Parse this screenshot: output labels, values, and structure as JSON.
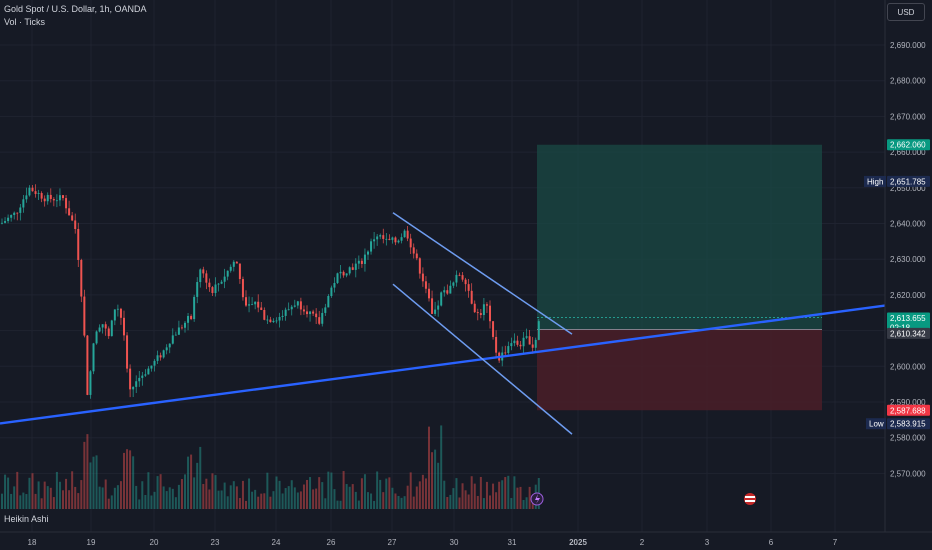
{
  "header": {
    "title": "Gold Spot / U.S. Dollar, 1h, OANDA",
    "indicator": "Vol · Ticks"
  },
  "currency_button": "USD",
  "footer_label": "Heikin Ashi",
  "price_axis": {
    "ticks": [
      "2,690.000",
      "2,680.000",
      "2,670.000",
      "2,660.000",
      "2,650.000",
      "2,640.000",
      "2,630.000",
      "2,620.000",
      "2,610.000",
      "2,600.000",
      "2,590.000",
      "2,580.000",
      "2,570.000"
    ],
    "tick_values": [
      2690,
      2680,
      2670,
      2660,
      2650,
      2640,
      2630,
      2620,
      2610,
      2600,
      2590,
      2580,
      2570
    ]
  },
  "time_axis": {
    "labels": [
      "18",
      "19",
      "20",
      "23",
      "24",
      "26",
      "27",
      "30",
      "31",
      "2025",
      "2",
      "3",
      "6",
      "7"
    ],
    "bold_index": 9
  },
  "price_tags": {
    "take_profit": "2,662.060",
    "high_label": "High",
    "high_value": "2,651.785",
    "current_price": "2,613.655",
    "countdown": "02:18",
    "entry": "2,610.342",
    "stop_loss": "2,587.688",
    "low_label": "Low",
    "low_value": "2,583.915"
  },
  "colors": {
    "background": "#161a25",
    "up": "#26a69a",
    "down": "#ef5350",
    "trendline": "#2962ff",
    "channel": "#6e9cf0",
    "profit_zone": "#1a4a44",
    "loss_zone": "#4a1f28",
    "tag_green": "#089981",
    "tag_red": "#f23645",
    "tag_navy": "#1c2a4f",
    "tag_grey": "#363a45"
  },
  "chart_data": {
    "type": "candlestick",
    "style": "Heikin Ashi",
    "symbol": "Gold Spot / U.S. Dollar",
    "timeframe": "1h",
    "ylim": [
      2563,
      2697
    ],
    "y_ticks": [
      2690,
      2680,
      2670,
      2660,
      2650,
      2640,
      2630,
      2620,
      2610,
      2600,
      2590,
      2580,
      2570
    ],
    "x_labels": [
      "18",
      "19",
      "20",
      "23",
      "24",
      "26",
      "27",
      "30",
      "31",
      "2025",
      "2",
      "3",
      "6",
      "7"
    ],
    "price_path_keypoints": [
      {
        "x": 0,
        "close": 2640
      },
      {
        "x": 15,
        "close": 2643
      },
      {
        "x": 28,
        "close": 2650
      },
      {
        "x": 45,
        "close": 2647
      },
      {
        "x": 62,
        "close": 2647
      },
      {
        "x": 75,
        "close": 2638
      },
      {
        "x": 82,
        "close": 2615
      },
      {
        "x": 87,
        "close": 2590
      },
      {
        "x": 92,
        "close": 2606
      },
      {
        "x": 100,
        "close": 2613
      },
      {
        "x": 108,
        "close": 2608
      },
      {
        "x": 115,
        "close": 2618
      },
      {
        "x": 122,
        "close": 2612
      },
      {
        "x": 128,
        "close": 2592
      },
      {
        "x": 135,
        "close": 2596
      },
      {
        "x": 150,
        "close": 2600
      },
      {
        "x": 162,
        "close": 2604
      },
      {
        "x": 170,
        "close": 2608
      },
      {
        "x": 180,
        "close": 2611
      },
      {
        "x": 190,
        "close": 2614
      },
      {
        "x": 200,
        "close": 2628
      },
      {
        "x": 210,
        "close": 2621
      },
      {
        "x": 220,
        "close": 2624
      },
      {
        "x": 235,
        "close": 2630
      },
      {
        "x": 245,
        "close": 2616
      },
      {
        "x": 255,
        "close": 2618
      },
      {
        "x": 265,
        "close": 2613
      },
      {
        "x": 280,
        "close": 2614
      },
      {
        "x": 295,
        "close": 2618
      },
      {
        "x": 305,
        "close": 2616
      },
      {
        "x": 318,
        "close": 2612
      },
      {
        "x": 325,
        "close": 2618
      },
      {
        "x": 335,
        "close": 2625
      },
      {
        "x": 345,
        "close": 2627
      },
      {
        "x": 360,
        "close": 2629
      },
      {
        "x": 375,
        "close": 2637
      },
      {
        "x": 385,
        "close": 2635
      },
      {
        "x": 395,
        "close": 2635
      },
      {
        "x": 405,
        "close": 2638
      },
      {
        "x": 415,
        "close": 2630
      },
      {
        "x": 425,
        "close": 2622
      },
      {
        "x": 432,
        "close": 2613
      },
      {
        "x": 440,
        "close": 2620
      },
      {
        "x": 450,
        "close": 2622
      },
      {
        "x": 458,
        "close": 2626
      },
      {
        "x": 465,
        "close": 2624
      },
      {
        "x": 472,
        "close": 2617
      },
      {
        "x": 478,
        "close": 2614
      },
      {
        "x": 485,
        "close": 2618
      },
      {
        "x": 490,
        "close": 2610
      },
      {
        "x": 497,
        "close": 2602
      },
      {
        "x": 503,
        "close": 2604
      },
      {
        "x": 510,
        "close": 2607
      },
      {
        "x": 518,
        "close": 2606
      },
      {
        "x": 527,
        "close": 2608
      },
      {
        "x": 533,
        "close": 2605
      },
      {
        "x": 538,
        "close": 2613
      }
    ],
    "volume_ticks_relative": "bars 0-1 scale, peaking near 0.9 around x 85-95 and 430-440",
    "trendline": {
      "from": {
        "x": 0,
        "price": 2584
      },
      "to": {
        "x": 885,
        "price": 2617
      }
    },
    "channel": [
      {
        "from": {
          "x": 393,
          "price": 2643
        },
        "to": {
          "x": 572,
          "price": 2609
        }
      },
      {
        "from": {
          "x": 393,
          "price": 2623
        },
        "to": {
          "x": 572,
          "price": 2581
        }
      }
    ],
    "position": {
      "type": "long",
      "entry": 2610.342,
      "take_profit": 2662.06,
      "stop_loss": 2587.688
    },
    "high": 2651.785,
    "low": 2583.915,
    "current": 2613.655
  }
}
